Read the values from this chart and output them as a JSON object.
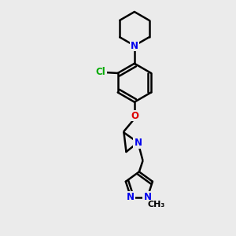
{
  "bg_color": "#ebebeb",
  "bond_color": "#000000",
  "bond_width": 1.8,
  "atom_colors": {
    "C": "#000000",
    "N": "#0000ee",
    "O": "#dd0000",
    "Cl": "#00aa00"
  },
  "font_size": 8.5,
  "fig_size": [
    3.0,
    3.0
  ],
  "dpi": 100
}
